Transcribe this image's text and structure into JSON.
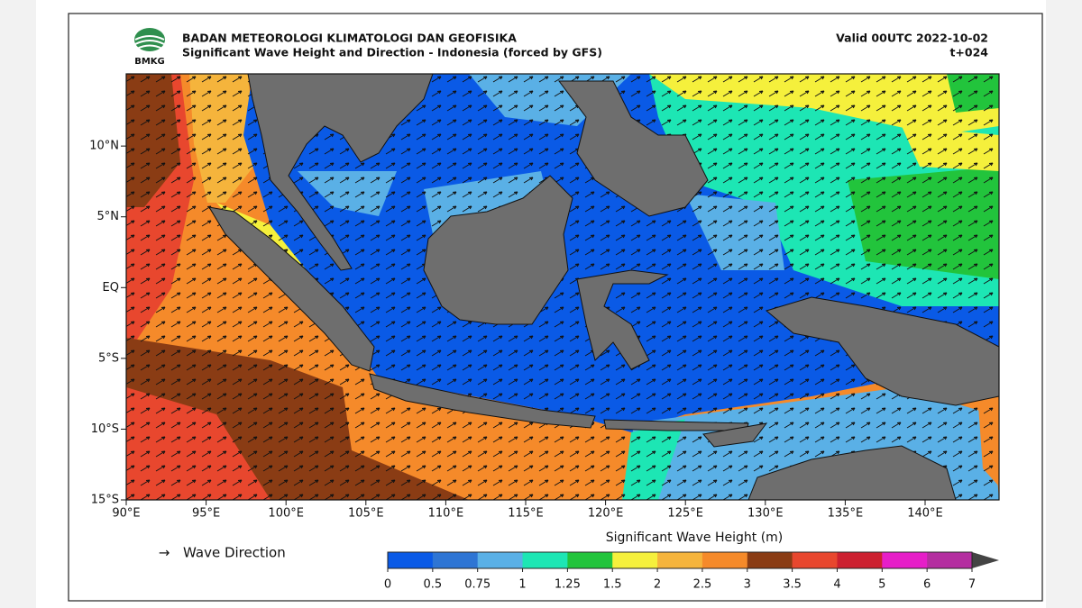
{
  "header": {
    "logo_text": "BMKG",
    "agency": "BADAN METEOROLOGI KLIMATOLOGI DAN GEOFISIKA",
    "title": "Significant Wave Height and Direction - Indonesia (forced by GFS)",
    "valid": "Valid 00UTC 2022-10-02",
    "lead": "t+024"
  },
  "map": {
    "lat_labels": [
      "10°N",
      "5°N",
      "EQ",
      "5°S",
      "10°S",
      "15°S"
    ],
    "lon_labels": [
      "90°E",
      "95°E",
      "100°E",
      "105°E",
      "110°E",
      "115°E",
      "120°E",
      "125°E",
      "130°E",
      "135°E",
      "140°E"
    ]
  },
  "legend": {
    "arrow_label": "Wave Direction"
  },
  "colorbar": {
    "label": "Significant Wave Height (m)",
    "ticks": [
      0,
      0.5,
      0.75,
      1,
      1.25,
      1.5,
      2,
      2.5,
      3,
      3.5,
      4,
      5,
      6,
      7
    ],
    "colors": [
      "#0a5ae6",
      "#2e75d4",
      "#5ab0e6",
      "#1de6b4",
      "#22c43c",
      "#f5f03c",
      "#f5b43c",
      "#f58a2a",
      "#8a3c14",
      "#e8472e",
      "#cc2030",
      "#e61ec8",
      "#b42ea0"
    ],
    "extend_color": "#444444"
  }
}
